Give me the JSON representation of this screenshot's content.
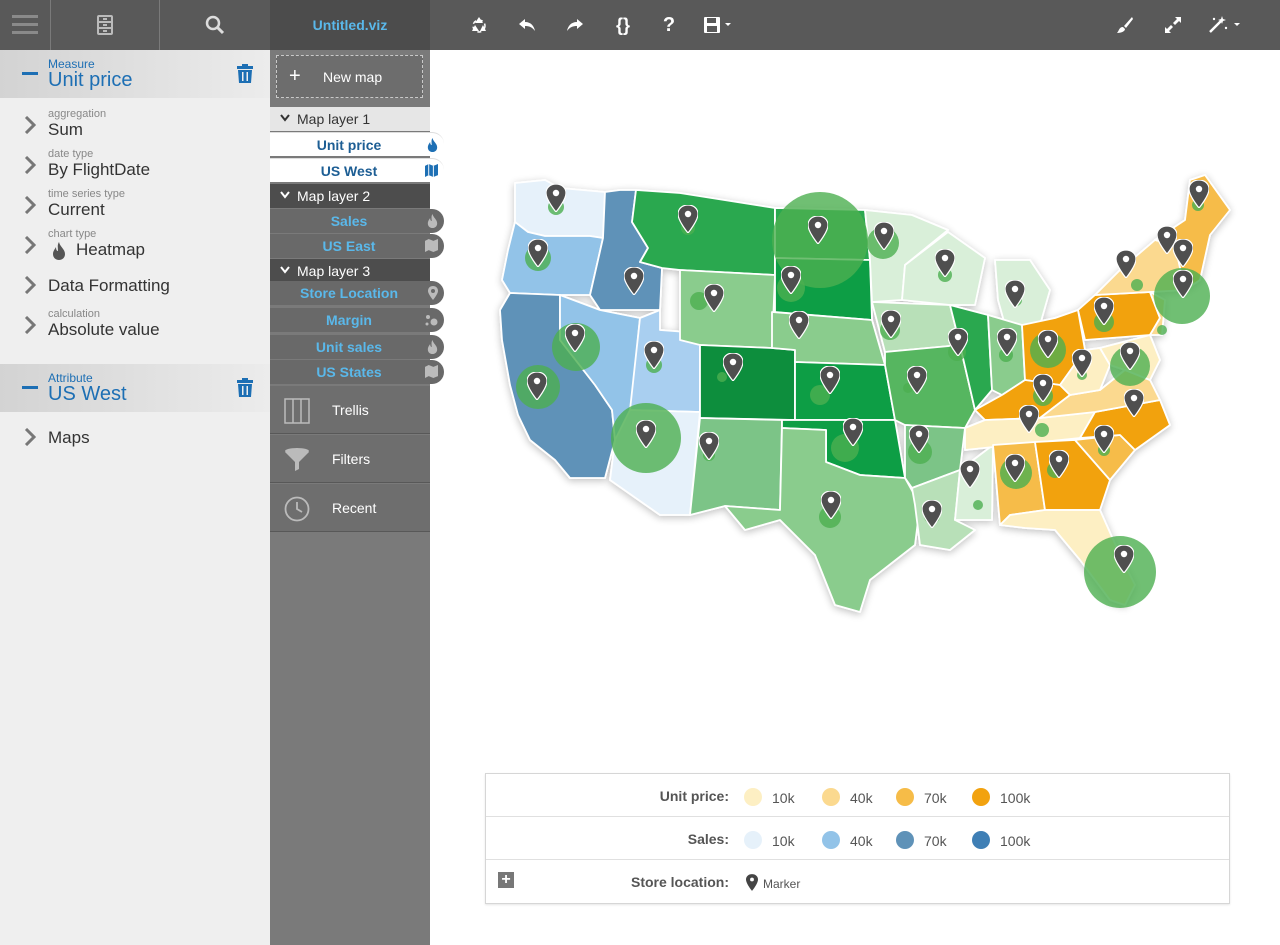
{
  "header": {
    "file_name": "Untitled.viz"
  },
  "toolbar": {
    "icons": [
      "menu-icon",
      "data-source-icon",
      "search-icon",
      "recycle-icon",
      "undo-icon",
      "redo-icon",
      "code-braces-icon",
      "help-icon",
      "save-icon",
      "brush-icon",
      "expand-icon",
      "magic-wand-icon"
    ]
  },
  "left_panel": {
    "measure": {
      "sublabel": "Measure",
      "name": "Unit price"
    },
    "props": [
      {
        "label": "aggregation",
        "value": "Sum"
      },
      {
        "label": "date type",
        "value": "By FlightDate"
      },
      {
        "label": "time series type",
        "value": "Current"
      },
      {
        "label": "chart type",
        "value": "Heatmap",
        "icon": "flame-icon"
      },
      {
        "label": "",
        "value": "Data Formatting"
      },
      {
        "label": "calculation",
        "value": "Absolute value"
      }
    ],
    "attribute": {
      "sublabel": "Attribute",
      "name": "US West"
    },
    "attr_props": [
      {
        "label": "",
        "value": "Maps"
      }
    ]
  },
  "middle_panel": {
    "new_map": "New map",
    "layers": [
      {
        "title": "Map layer 1",
        "items": [
          {
            "label": "Unit price",
            "icon": "flame-icon"
          },
          {
            "label": "US West",
            "icon": "map-icon"
          }
        ]
      },
      {
        "title": "Map layer 2",
        "items": [
          {
            "label": "Sales",
            "icon": "flame-icon"
          },
          {
            "label": "US East",
            "icon": "map-icon"
          }
        ]
      },
      {
        "title": "Map layer 3",
        "items": [
          {
            "label": "Store Location",
            "icon": "pin-icon"
          },
          {
            "label": "Margin",
            "icon": "bubbles-icon"
          },
          {
            "label": "Unit sales",
            "icon": "flame-icon"
          },
          {
            "label": "US States",
            "icon": "map-icon"
          }
        ]
      }
    ],
    "buttons": [
      {
        "label": "Trellis",
        "icon": "trellis-icon"
      },
      {
        "label": "Filters",
        "icon": "filter-icon"
      },
      {
        "label": "Recent",
        "icon": "clock-icon"
      }
    ]
  },
  "legend": {
    "unit_price": {
      "title": "Unit price:",
      "items": [
        {
          "label": "10k",
          "color": "#fdefc3"
        },
        {
          "label": "40k",
          "color": "#fbd98f"
        },
        {
          "label": "70k",
          "color": "#f6bc48"
        },
        {
          "label": "100k",
          "color": "#f2a20f"
        }
      ]
    },
    "sales": {
      "title": "Sales:",
      "items": [
        {
          "label": "10k",
          "color": "#e6f1fa"
        },
        {
          "label": "40k",
          "color": "#92c3e8"
        },
        {
          "label": "70k",
          "color": "#5f92b8"
        },
        {
          "label": "100k",
          "color": "#3f7fb5"
        }
      ]
    },
    "store_location": {
      "title": "Store location:",
      "marker_label": "Marker"
    }
  },
  "colors": {
    "accent_blue": "#1d6fb4",
    "link_blue": "#5ab8ea",
    "green_map": "#2a9f4a",
    "orange_map": "#f2a20f"
  }
}
